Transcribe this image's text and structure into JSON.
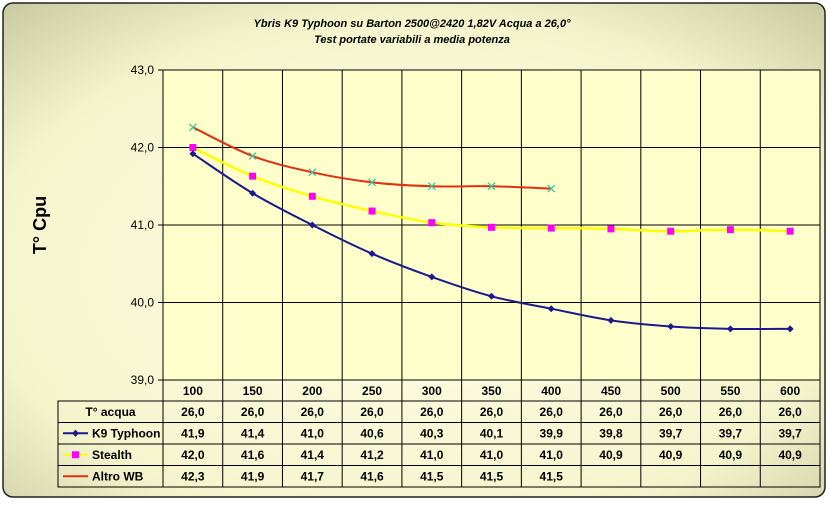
{
  "chart_data": {
    "type": "line",
    "title": "Ybris K9 Typhoon su Barton 2500@2420  1,82V  Acqua a 26,0°",
    "subtitle": "Test  portate variabili a media potenza",
    "ylabel": "T° Cpu",
    "xlabel": "",
    "ylim": [
      39.0,
      43.0
    ],
    "yticks": [
      "39,0",
      "40,0",
      "41,0",
      "42,0",
      "43,0"
    ],
    "grid": true,
    "legend": "data-table",
    "categories": [
      "100",
      "150",
      "200",
      "250",
      "300",
      "350",
      "400",
      "450",
      "500",
      "550",
      "600"
    ],
    "x": [
      100,
      150,
      200,
      250,
      300,
      350,
      400,
      450,
      500,
      550,
      600
    ],
    "table_rows": [
      {
        "name": "T° acqua",
        "values": [
          "26,0",
          "26,0",
          "26,0",
          "26,0",
          "26,0",
          "26,0",
          "26,0",
          "26,0",
          "26,0",
          "26,0",
          "26,0"
        ]
      },
      {
        "name": "K9 Typhoon",
        "values": [
          "41,9",
          "41,4",
          "41,0",
          "40,6",
          "40,3",
          "40,1",
          "39,9",
          "39,8",
          "39,7",
          "39,7",
          "39,7"
        ]
      },
      {
        "name": "Stealth",
        "values": [
          "42,0",
          "41,6",
          "41,4",
          "41,2",
          "41,0",
          "41,0",
          "41,0",
          "40,9",
          "40,9",
          "40,9",
          "40,9"
        ]
      },
      {
        "name": "Altro WB",
        "values": [
          "42,3",
          "41,9",
          "41,7",
          "41,6",
          "41,5",
          "41,5",
          "41,5",
          "",
          "",
          "",
          ""
        ]
      }
    ],
    "series": [
      {
        "name": "K9 Typhoon",
        "color": "#1a1a8c",
        "marker": "diamond",
        "values": [
          41.92,
          41.41,
          41.0,
          40.63,
          40.33,
          40.08,
          39.92,
          39.77,
          39.69,
          39.66,
          39.66
        ]
      },
      {
        "name": "Stealth",
        "color": "#ffff00",
        "marker": "square",
        "marker_color": "#ff00ff",
        "values": [
          42.0,
          41.63,
          41.37,
          41.18,
          41.03,
          40.97,
          40.96,
          40.95,
          40.92,
          40.94,
          40.92
        ]
      },
      {
        "name": "Altro WB",
        "color": "#e03010",
        "marker": "x",
        "marker_color": "#40c0a0",
        "values": [
          42.26,
          41.89,
          41.68,
          41.55,
          41.5,
          41.5,
          41.47,
          null,
          null,
          null,
          null
        ]
      }
    ],
    "colors": {
      "plot_background": "#ffffcc",
      "outer_background": "#fafae0",
      "grid": "#000000"
    }
  }
}
